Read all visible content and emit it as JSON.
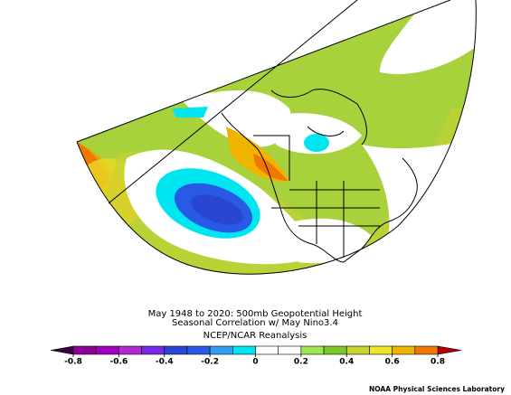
{
  "map": {
    "title_lines": [
      "May 1948 to 2020: 500mb Geopotential Height",
      "Seasonal Correlation w/ May Nino3.4"
    ],
    "subtitle": "NCEP/NCAR Reanalysis"
  },
  "colorbar": {
    "ticks": [
      -0.8,
      -0.6,
      -0.4,
      -0.2,
      0,
      0.2,
      0.4,
      0.6,
      0.8
    ],
    "colors": [
      "#8c0096",
      "#a000be",
      "#b428d2",
      "#7828e6",
      "#2846d2",
      "#285ae6",
      "#32a0f0",
      "#00e6f0",
      "#ffffff",
      "#ffffff",
      "#a0e650",
      "#78c828",
      "#c8d232",
      "#f0e628",
      "#f0b400",
      "#f07800"
    ],
    "under_color": "#3c003c",
    "over_color": "#b40000"
  },
  "credit": "NOAA Physical Sciences Laboratory"
}
